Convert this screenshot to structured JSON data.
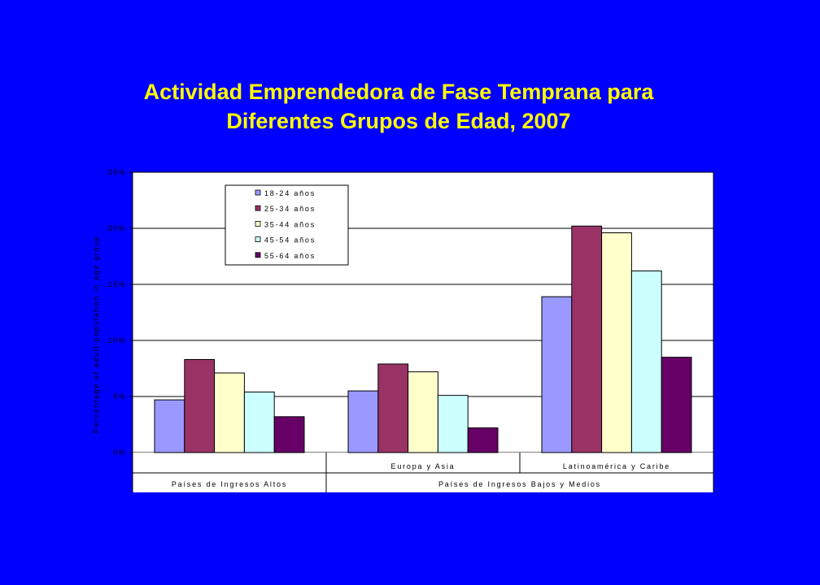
{
  "title_line1": "Actividad Emprendedora de Fase Temprana para",
  "title_line2": "Diferentes Grupos de Edad, 2007",
  "chart_data": {
    "type": "bar",
    "ylabel": "Percentage of adult population in age group",
    "ylim": [
      0,
      25
    ],
    "yticks": [
      "0%",
      "5%",
      "10%",
      "15%",
      "20%",
      "25%"
    ],
    "grid": true,
    "legend_position": "top-left",
    "categories": [
      {
        "label": "",
        "group": "Países de Ingresos Altos"
      },
      {
        "label": "Europa y Asia",
        "group": "Países de Ingresos Bajos y Medios"
      },
      {
        "label": "Latinoamérica y Caribe",
        "group": "Países de Ingresos Bajos y Medios"
      }
    ],
    "groups": [
      "Países de Ingresos Altos",
      "Países de Ingresos Bajos y Medios"
    ],
    "series": [
      {
        "name": "18-24 años",
        "color": "#9999FF",
        "values": [
          4.7,
          5.5,
          13.9
        ]
      },
      {
        "name": "25-34 años",
        "color": "#993366",
        "values": [
          8.3,
          7.9,
          20.2
        ]
      },
      {
        "name": "35-44 años",
        "color": "#FFFFCC",
        "values": [
          7.1,
          7.2,
          19.6
        ]
      },
      {
        "name": "45-54 años",
        "color": "#CCFFFF",
        "values": [
          5.4,
          5.1,
          16.2
        ]
      },
      {
        "name": "55-64 años",
        "color": "#660066",
        "values": [
          3.2,
          2.2,
          8.5
        ]
      }
    ]
  }
}
